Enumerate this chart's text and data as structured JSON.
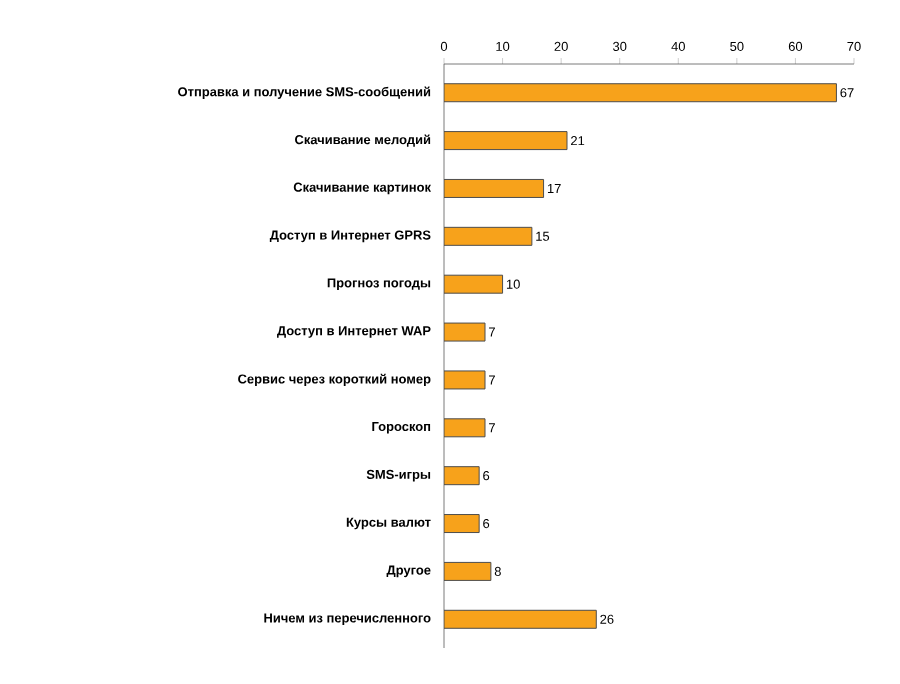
{
  "chart_data": {
    "type": "bar",
    "orientation": "horizontal",
    "categories": [
      "Отправка и получение SMS-сообщений",
      "Скачивание мелодий",
      "Скачивание картинок",
      "Доступ в Интернет GPRS",
      "Прогноз погоды",
      "Доступ в Интернет WAP",
      "Сервис через короткий номер",
      "Гороскоп",
      "SMS-игры",
      "Курсы валют",
      "Другое",
      "Ничем из перечисленного"
    ],
    "values": [
      67,
      21,
      17,
      15,
      10,
      7,
      7,
      7,
      6,
      6,
      8,
      26
    ],
    "color": "#f7a21b",
    "xlim": [
      0,
      70
    ],
    "xticks": [
      0,
      10,
      20,
      30,
      40,
      50,
      60,
      70
    ],
    "data_labels": true
  }
}
